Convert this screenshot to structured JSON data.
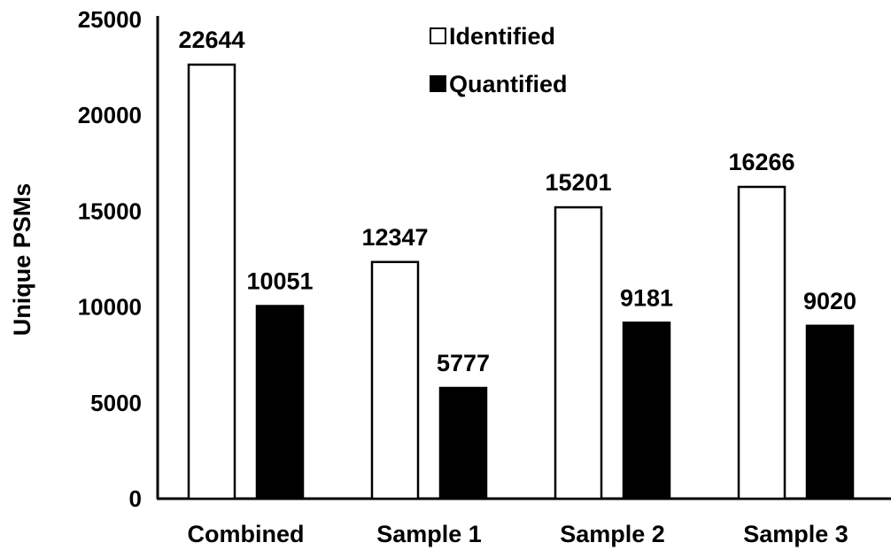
{
  "chart_data": {
    "type": "bar",
    "title": "",
    "xlabel": "",
    "ylabel": "Unique PSMs",
    "ylim": [
      0,
      25000
    ],
    "yticks": [
      0,
      5000,
      10000,
      15000,
      20000,
      25000
    ],
    "grid": false,
    "legend_position": "top-right",
    "categories": [
      "Combined",
      "Sample 1",
      "Sample 2",
      "Sample 3"
    ],
    "series": [
      {
        "name": "Identified",
        "fill": "#ffffff",
        "stroke": "#000000",
        "values": [
          22644,
          12347,
          15201,
          16266
        ],
        "labels": [
          "22644",
          "12347",
          "15201",
          "16266"
        ]
      },
      {
        "name": "Quantified",
        "fill": "#000000",
        "stroke": "#000000",
        "values": [
          10051,
          5777,
          9181,
          9020
        ],
        "labels": [
          "10051",
          "5777",
          "9181",
          "9020"
        ]
      }
    ]
  }
}
